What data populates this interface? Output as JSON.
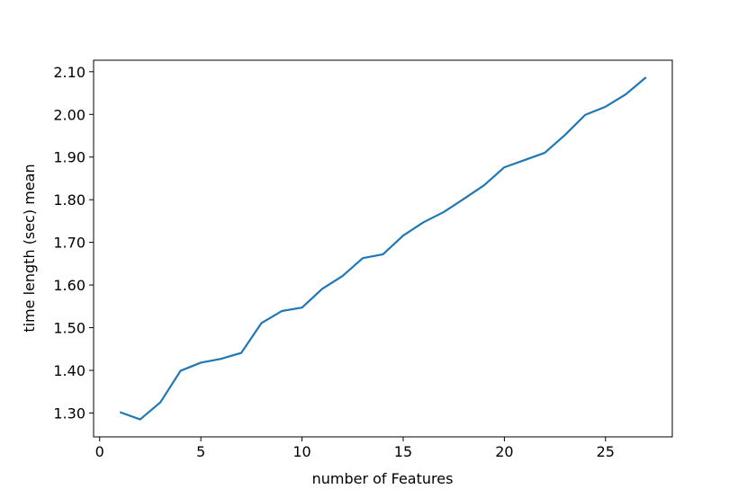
{
  "chart_data": {
    "type": "line",
    "xlabel": "number of Features",
    "ylabel": "time length (sec) mean",
    "x": [
      1,
      2,
      3,
      4,
      5,
      6,
      7,
      8,
      9,
      10,
      11,
      12,
      13,
      14,
      15,
      16,
      17,
      18,
      19,
      20,
      21,
      22,
      23,
      24,
      25,
      26,
      27
    ],
    "series": [
      {
        "color": "#1f77b4",
        "values": [
          1.302,
          1.285,
          1.325,
          1.399,
          1.418,
          1.427,
          1.441,
          1.511,
          1.539,
          1.547,
          1.591,
          1.621,
          1.663,
          1.672,
          1.716,
          1.747,
          1.771,
          1.802,
          1.834,
          1.876,
          1.893,
          1.91,
          1.952,
          1.999,
          2.018,
          2.047,
          2.087
        ]
      }
    ],
    "xlim": [
      -0.3,
      28.3
    ],
    "xticks": [
      0,
      5,
      10,
      15,
      20,
      25
    ],
    "ylim": [
      1.244,
      2.127
    ],
    "yticks": [
      {
        "value": 1.3,
        "label": "1.30"
      },
      {
        "value": 1.4,
        "label": "1.40"
      },
      {
        "value": 1.5,
        "label": "1.50"
      },
      {
        "value": 1.6,
        "label": "1.60"
      },
      {
        "value": 1.7,
        "label": "1.70"
      },
      {
        "value": 1.8,
        "label": "1.80"
      },
      {
        "value": 1.9,
        "label": "1.90"
      },
      {
        "value": 2.0,
        "label": "2.00"
      },
      {
        "value": 2.1,
        "label": "2.10"
      }
    ],
    "grid": false
  }
}
